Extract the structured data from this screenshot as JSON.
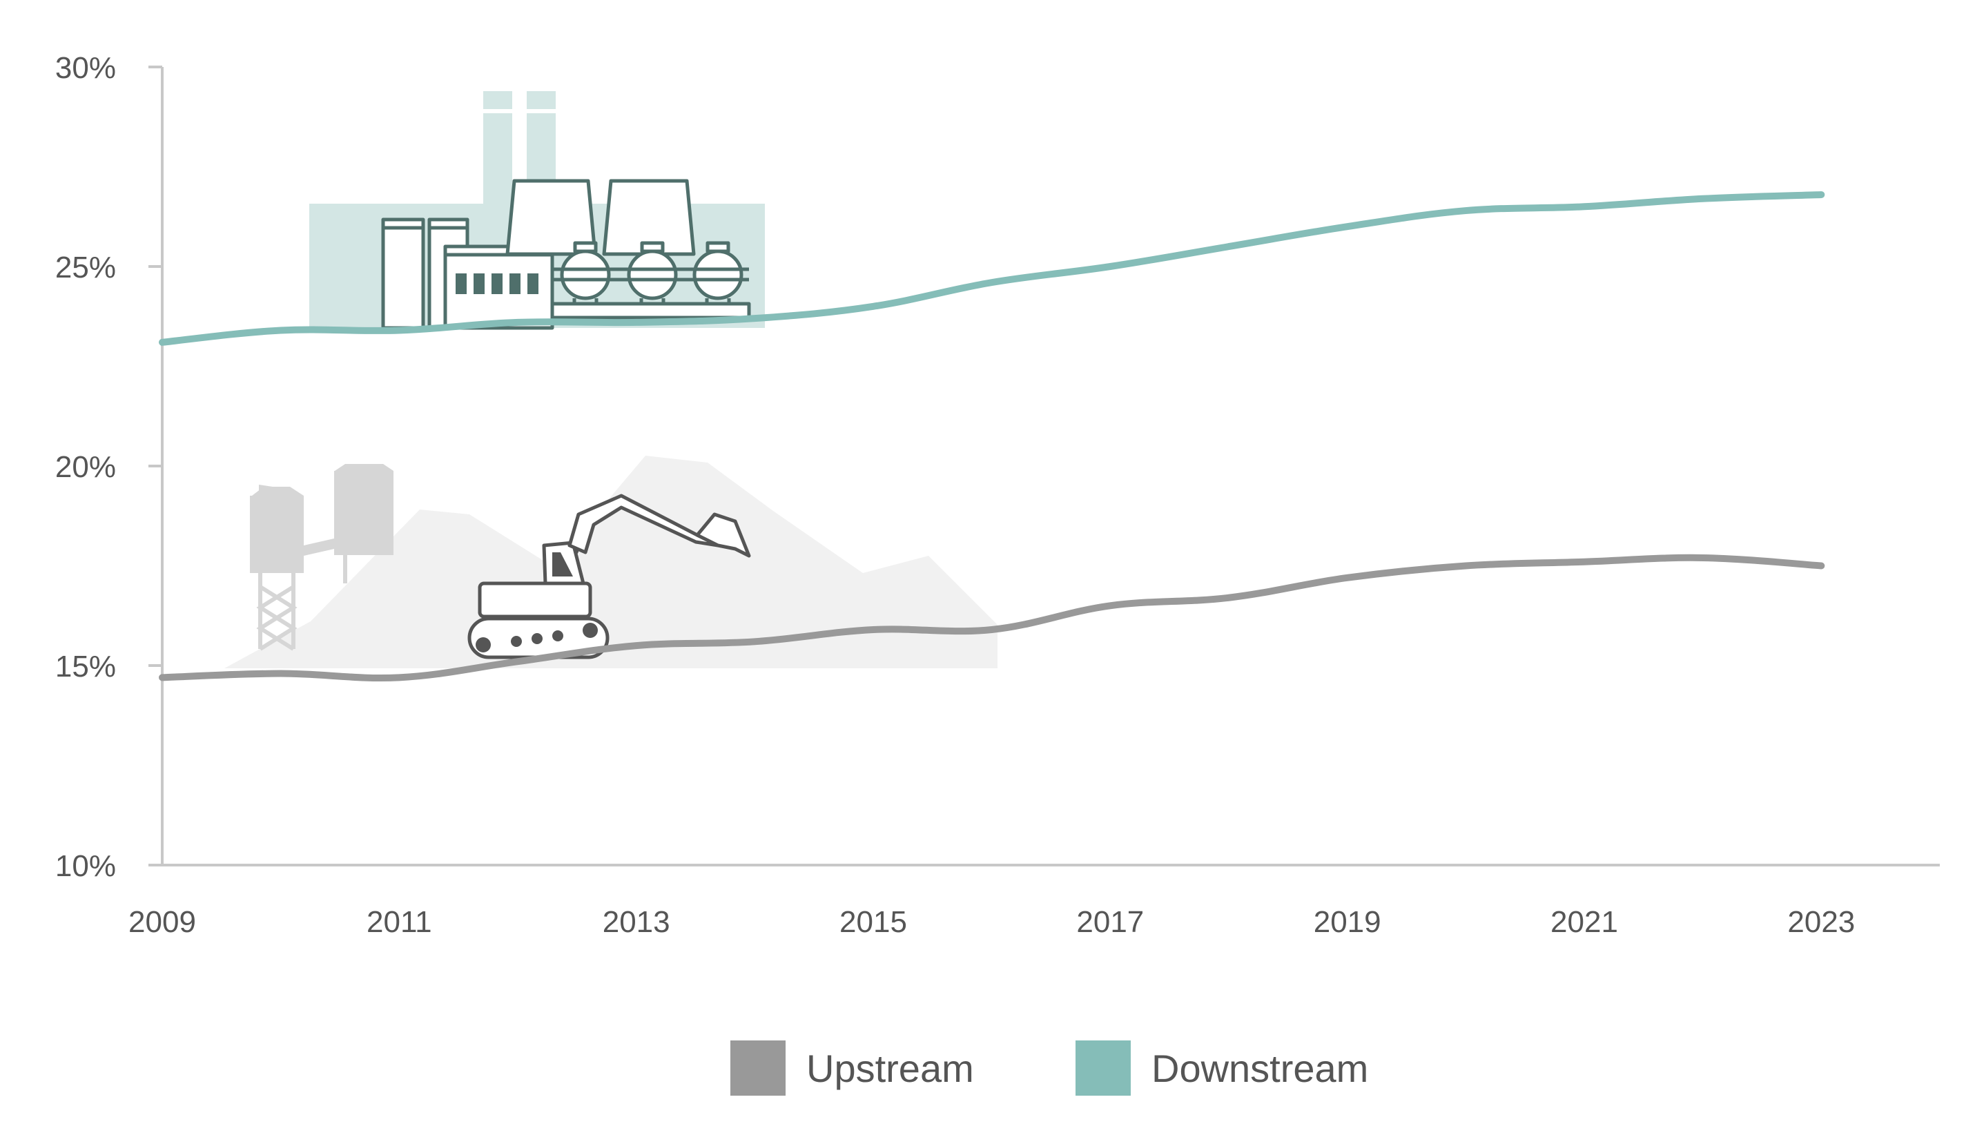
{
  "colors": {
    "upstream": "#999999",
    "downstream": "#85bdb8",
    "axis": "#c8c8c8",
    "tick_text": "#555555",
    "factory_fill": "#d3e6e4",
    "factory_stroke": "#4f6f6b",
    "mine_fill": "#f1f1f1",
    "silo_fill": "#d6d6d6",
    "excavator_stroke": "#555555"
  },
  "icons": [
    "factory-illustration",
    "mine-excavator-illustration"
  ],
  "chart_data": {
    "type": "line",
    "title": "",
    "xlabel": "",
    "ylabel": "",
    "x": [
      2009,
      2010,
      2011,
      2012,
      2013,
      2014,
      2015,
      2016,
      2017,
      2018,
      2019,
      2020,
      2021,
      2022,
      2023
    ],
    "xlim": [
      2009,
      2024.0
    ],
    "ylim": [
      10,
      30
    ],
    "x_ticks": [
      2009,
      2011,
      2013,
      2015,
      2017,
      2019,
      2021,
      2023
    ],
    "x_tick_labels": [
      "2009",
      "2011",
      "2013",
      "2015",
      "2017",
      "2019",
      "2021",
      "2023"
    ],
    "y_ticks": [
      10,
      15,
      20,
      25,
      30
    ],
    "y_tick_labels": [
      "10%",
      "15%",
      "20%",
      "25%",
      "30%"
    ],
    "grid": false,
    "legend_position": "bottom-center",
    "series": [
      {
        "name": "Upstream",
        "color": "#999999",
        "values": [
          14.7,
          14.8,
          14.7,
          15.1,
          15.5,
          15.6,
          15.9,
          15.9,
          16.5,
          16.7,
          17.2,
          17.5,
          17.6,
          17.7,
          17.5
        ]
      },
      {
        "name": "Downstream",
        "color": "#85bdb8",
        "values": [
          23.1,
          23.4,
          23.4,
          23.6,
          23.6,
          23.7,
          24.0,
          24.6,
          25.0,
          25.5,
          26.0,
          26.4,
          26.5,
          26.7,
          26.8
        ]
      }
    ]
  }
}
